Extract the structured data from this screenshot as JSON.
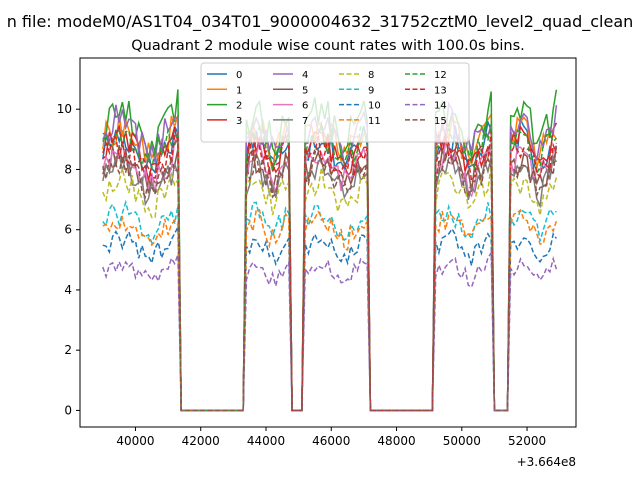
{
  "chart_data": {
    "type": "line",
    "suptitle": "n file: modeM0/AS1T04_034T01_9000004632_31752cztM0_level2_quad_clean",
    "title": "Quadrant 2 module wise count rates with 100.0s bins.",
    "xlabel": "",
    "ylabel": "",
    "x_offset_label": "+3.664e8",
    "x_offset": 366400000,
    "xlim": [
      38300,
      53500
    ],
    "ylim": [
      -0.55,
      11.7
    ],
    "xticks": [
      40000,
      42000,
      44000,
      46000,
      48000,
      50000,
      52000
    ],
    "yticks": [
      0,
      2,
      4,
      6,
      8,
      10
    ],
    "grid": false,
    "legend_position": "top-center",
    "legend_columns": 4,
    "bin_seconds": 100.0,
    "segments": [
      [
        39000,
        41300
      ],
      [
        43400,
        44700
      ],
      [
        45200,
        47100
      ],
      [
        49200,
        50900
      ],
      [
        51500,
        52900
      ]
    ],
    "series": [
      {
        "name": "0",
        "color": "#1f77b4",
        "dash": "solid",
        "level": 8.6
      },
      {
        "name": "1",
        "color": "#ff7f0e",
        "dash": "solid",
        "level": 8.9
      },
      {
        "name": "2",
        "color": "#2ca02c",
        "dash": "solid",
        "level": 9.4
      },
      {
        "name": "3",
        "color": "#d62728",
        "dash": "solid",
        "level": 8.5
      },
      {
        "name": "4",
        "color": "#9467bd",
        "dash": "solid",
        "level": 9.1
      },
      {
        "name": "5",
        "color": "#8c564b",
        "dash": "solid",
        "level": 7.9
      },
      {
        "name": "6",
        "color": "#e377c2",
        "dash": "solid",
        "level": 8.0
      },
      {
        "name": "7",
        "color": "#7f7f7f",
        "dash": "solid",
        "level": 7.6
      },
      {
        "name": "8",
        "color": "#bcbd22",
        "dash": "dashed",
        "level": 7.2
      },
      {
        "name": "9",
        "color": "#17becf",
        "dash": "dashed",
        "level": 6.2
      },
      {
        "name": "10",
        "color": "#1f77b4",
        "dash": "dashed",
        "level": 5.4
      },
      {
        "name": "11",
        "color": "#ff7f0e",
        "dash": "dashed",
        "level": 6.0
      },
      {
        "name": "12",
        "color": "#2ca02c",
        "dash": "dashed",
        "level": 8.7
      },
      {
        "name": "13",
        "color": "#d62728",
        "dash": "dashed",
        "level": 8.3
      },
      {
        "name": "14",
        "color": "#9467bd",
        "dash": "dashed",
        "level": 4.6
      },
      {
        "name": "15",
        "color": "#8c564b",
        "dash": "dashed",
        "level": 7.8
      }
    ]
  }
}
